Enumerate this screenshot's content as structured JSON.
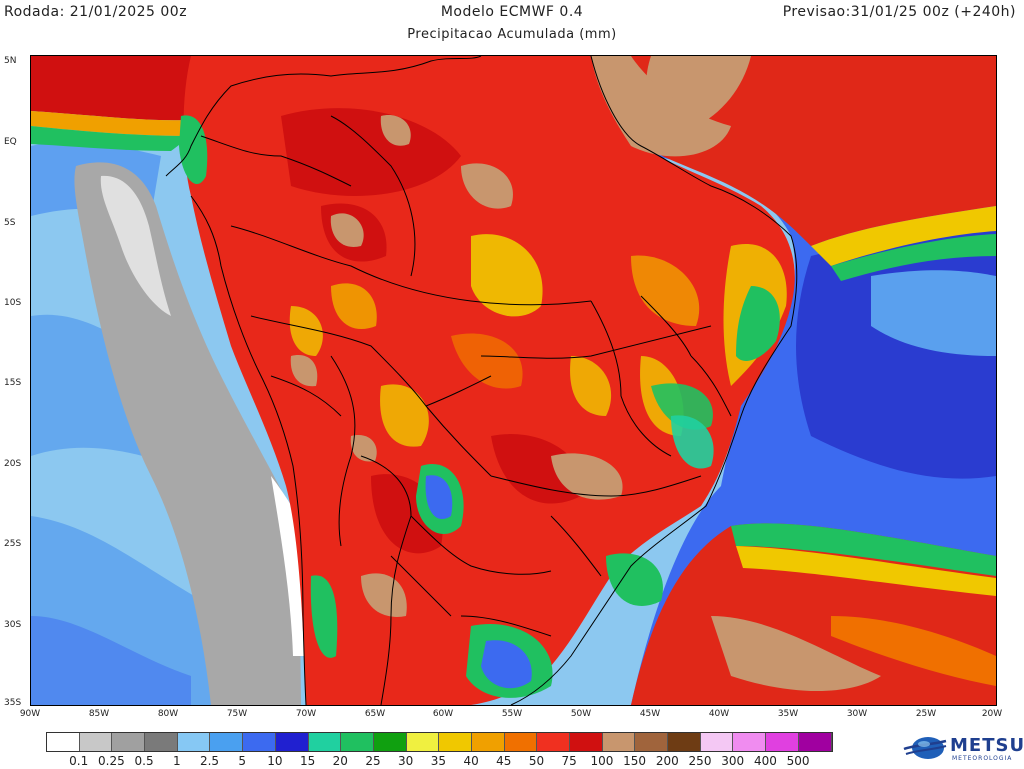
{
  "header": {
    "run": "Rodada: 21/01/2025 00z",
    "model": "Modelo ECMWF 0.4",
    "forecast": "Previsao:31/01/25 00z (+240h)",
    "variable": "Precipitacao Acumulada (mm)"
  },
  "map": {
    "lat_labels": [
      "5N",
      "EQ",
      "5S",
      "10S",
      "15S",
      "20S",
      "25S",
      "30S",
      "35S"
    ],
    "lon_labels": [
      "90W",
      "85W",
      "80W",
      "75W",
      "70W",
      "65W",
      "60W",
      "55W",
      "50W",
      "45W",
      "40W",
      "35W",
      "30W",
      "25W",
      "20W"
    ]
  },
  "legend": {
    "colors": [
      "#ffffff",
      "#c8c8c8",
      "#a0a0a0",
      "#7a7a7a",
      "#86c8f4",
      "#4aa0f0",
      "#3c6af0",
      "#2020d0",
      "#20d0a0",
      "#20c060",
      "#10a010",
      "#f0f040",
      "#f0c800",
      "#f0a000",
      "#f07000",
      "#f03020",
      "#d01010",
      "#c8966e",
      "#a0643c",
      "#6e3c14",
      "#f4c8f4",
      "#f08cf0",
      "#e040e0",
      "#a000a0"
    ],
    "labels": [
      "0.1",
      "0.25",
      "0.5",
      "1",
      "2.5",
      "5",
      "10",
      "15",
      "20",
      "25",
      "30",
      "35",
      "40",
      "45",
      "50",
      "75",
      "100",
      "150",
      "200",
      "250",
      "300",
      "400",
      "500"
    ]
  },
  "logo": {
    "name": "METSUL",
    "tagline": "METEOROLOGIA"
  }
}
